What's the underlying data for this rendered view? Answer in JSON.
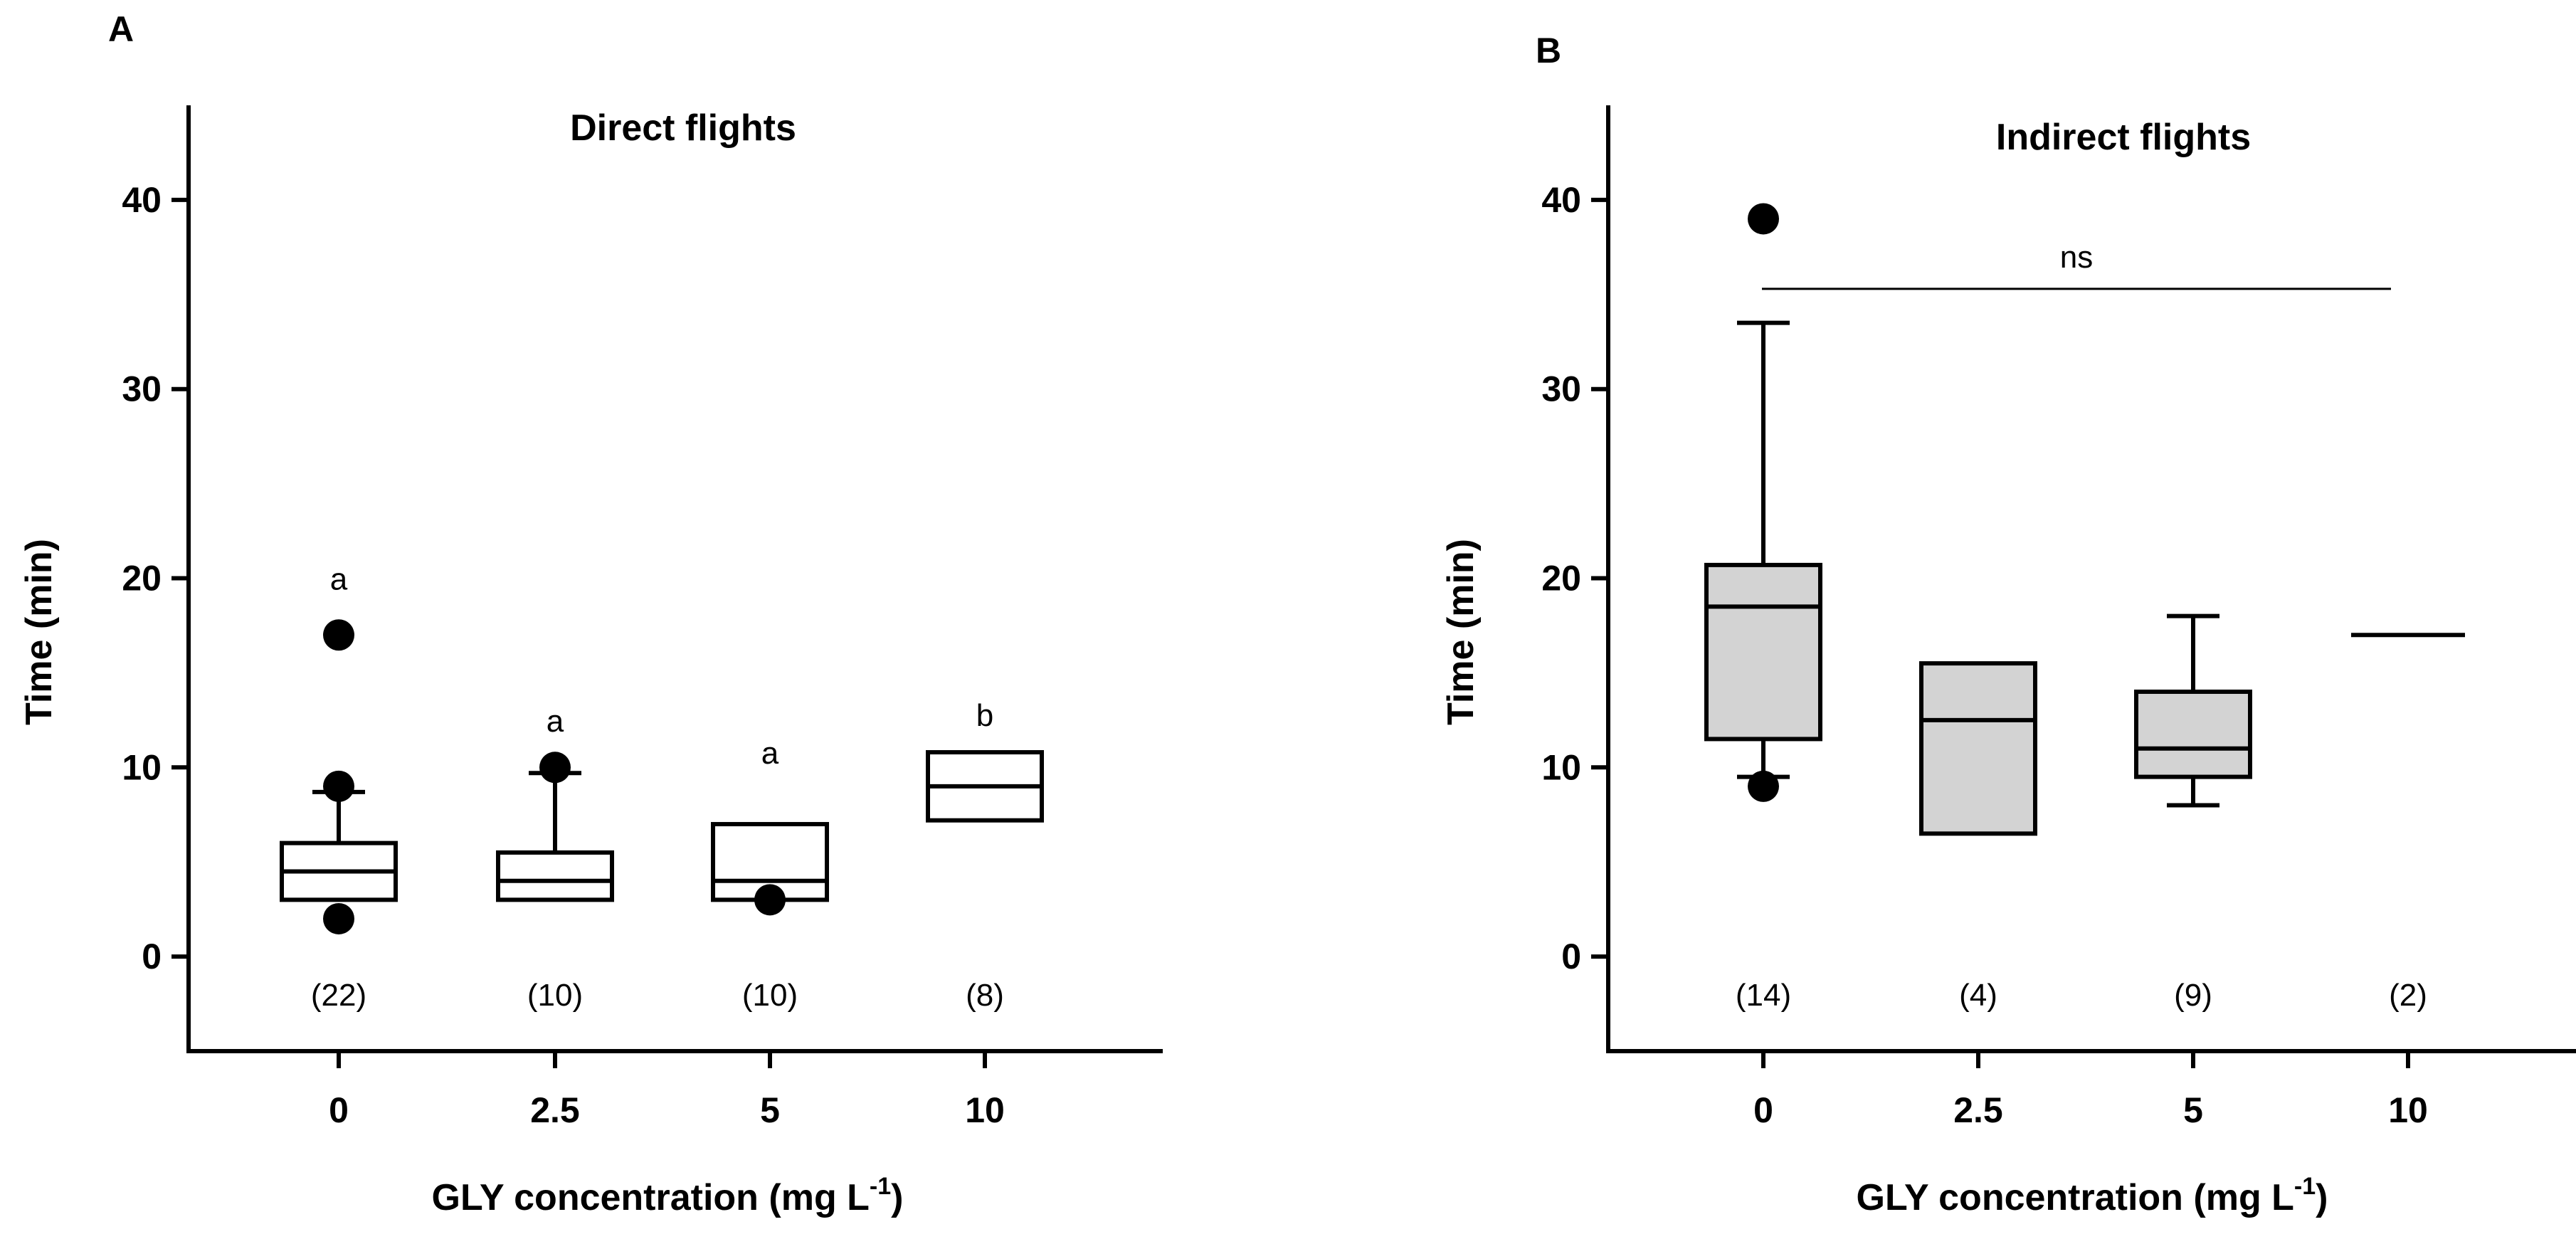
{
  "chart_data": [
    {
      "type": "box",
      "panel": "A",
      "title": "Direct flights",
      "xlabel": "GLY concentration (mg L",
      "xlabel_sup": "-1",
      "xlabel_end": ")",
      "ylabel": "Time (min)",
      "ylim": [
        -5,
        45
      ],
      "yticks": [
        0,
        10,
        20,
        30,
        40
      ],
      "box_fill": "#ffffff",
      "categories": [
        "0",
        "2.5",
        "5",
        "10"
      ],
      "boxes": [
        {
          "category": "0",
          "q1": 3,
          "median": 4.5,
          "q3": 6,
          "whisker_low": null,
          "whisker_high": 8.7,
          "outliers": [
            17,
            9,
            2
          ],
          "n_label": "(22)",
          "letter": "a",
          "letter_y": 20
        },
        {
          "category": "2.5",
          "q1": 3,
          "median": 4,
          "q3": 5.5,
          "whisker_low": null,
          "whisker_high": 9.7,
          "outliers": [
            10
          ],
          "n_label": "(10)",
          "letter": "a",
          "letter_y": 12.5
        },
        {
          "category": "5",
          "q1": 3,
          "median": 4,
          "q3": 7,
          "whisker_low": null,
          "whisker_high": null,
          "outliers": [
            3
          ],
          "n_label": "(10)",
          "letter": "a",
          "letter_y": 10.8
        },
        {
          "category": "10",
          "q1": 7.2,
          "median": 9,
          "q3": 10.8,
          "whisker_low": null,
          "whisker_high": null,
          "outliers": [],
          "n_label": "(8)",
          "letter": "b",
          "letter_y": 12.8
        }
      ]
    },
    {
      "type": "box",
      "panel": "B",
      "title": "Indirect flights",
      "xlabel": "GLY concentration (mg L",
      "xlabel_sup": "-1",
      "xlabel_end": ")",
      "ylabel": "Time (min)",
      "ylim": [
        -5,
        45
      ],
      "yticks": [
        0,
        10,
        20,
        30,
        40
      ],
      "box_fill": "#d3d3d3",
      "categories": [
        "0",
        "2.5",
        "5",
        "10"
      ],
      "boxes": [
        {
          "category": "0",
          "q1": 11.5,
          "median": 18.5,
          "q3": 20.7,
          "whisker_low": 9.5,
          "whisker_high": 33.5,
          "outliers": [
            39,
            9
          ],
          "n_label": "(14)"
        },
        {
          "category": "2.5",
          "q1": 6.5,
          "median": 12.5,
          "q3": 15.5,
          "whisker_low": null,
          "whisker_high": null,
          "outliers": [],
          "n_label": "(4)"
        },
        {
          "category": "5",
          "q1": 9.5,
          "median": 11,
          "q3": 14,
          "whisker_low": 8,
          "whisker_high": 18,
          "outliers": [],
          "n_label": "(9)"
        },
        {
          "category": "10",
          "q1": 17,
          "median": 17,
          "q3": 17,
          "whisker_low": null,
          "whisker_high": null,
          "outliers": [],
          "n_label": "(2)"
        }
      ],
      "significance": {
        "label": "ns",
        "y": 35.3,
        "from_category": "0",
        "to_category": "10"
      }
    }
  ]
}
